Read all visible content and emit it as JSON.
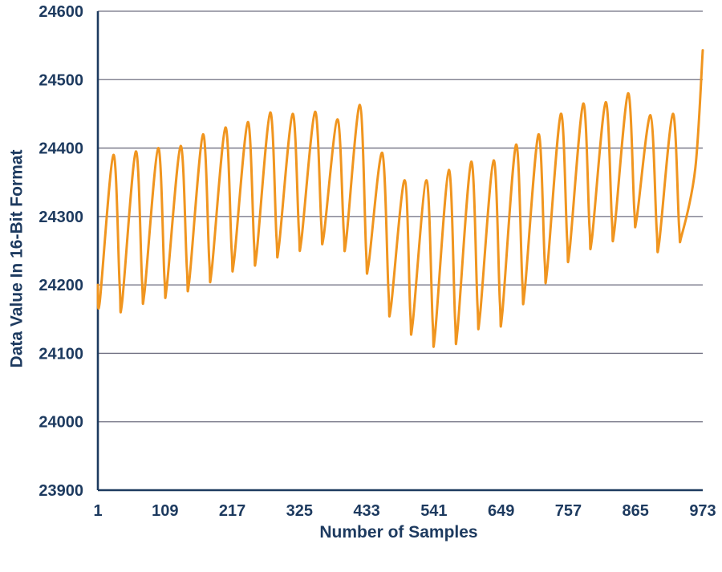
{
  "chart_data": {
    "type": "line",
    "title": "",
    "xlabel": "Number of Samples",
    "ylabel": "Data Value In 16-Bit Format",
    "xlim": [
      1,
      973
    ],
    "ylim": [
      23900,
      24600
    ],
    "x_ticks": [
      1,
      109,
      217,
      325,
      433,
      541,
      649,
      757,
      865,
      973
    ],
    "x_tick_labels": [
      "1",
      "109",
      "217",
      "325",
      "433",
      "541",
      "649",
      "757",
      "865",
      "973"
    ],
    "y_ticks": [
      23900,
      24000,
      24100,
      24200,
      24300,
      24400,
      24500,
      24600
    ],
    "y_tick_labels": [
      "23900",
      "24000",
      "24100",
      "24200",
      "24300",
      "24400",
      "24500",
      "24600"
    ],
    "grid": "horizontal",
    "colors": {
      "line": "#f0951f",
      "axis": "#1d3a5f",
      "grid": "#6f6f80"
    },
    "series": [
      {
        "x": [
          1,
          4,
          26,
          36,
          40,
          62,
          72,
          76,
          98,
          108,
          112,
          134,
          144,
          148,
          170,
          180,
          184,
          206,
          216,
          220,
          242,
          252,
          256,
          278,
          288,
          292,
          314,
          324,
          328,
          350,
          360,
          364,
          386,
          396,
          400,
          422,
          432,
          436,
          458,
          468,
          472,
          494,
          503,
          507,
          529,
          539,
          543,
          565,
          575,
          579,
          601,
          611,
          615,
          637,
          647,
          651,
          673,
          683,
          687,
          709,
          719,
          723,
          745,
          755,
          759,
          781,
          791,
          795,
          817,
          827,
          831,
          853,
          863,
          867,
          889,
          899,
          903,
          925,
          935,
          939,
          961,
          973
        ],
        "y": [
          24200,
          24175,
          24390,
          24200,
          24175,
          24395,
          24205,
          24190,
          24400,
          24210,
          24200,
          24403,
          24225,
          24207,
          24420,
          24235,
          24222,
          24430,
          24250,
          24237,
          24438,
          24260,
          24245,
          24452,
          24270,
          24257,
          24450,
          24280,
          24265,
          24453,
          24290,
          24272,
          24442,
          24280,
          24265,
          24463,
          24250,
          24230,
          24393,
          24190,
          24168,
          24353,
          24160,
          24145,
          24353,
          24145,
          24130,
          24368,
          24150,
          24135,
          24380,
          24170,
          24155,
          24382,
          24175,
          24160,
          24405,
          24205,
          24192,
          24420,
          24235,
          24222,
          24450,
          24268,
          24250,
          24465,
          24285,
          24268,
          24467,
          24295,
          24280,
          24480,
          24310,
          24298,
          24448,
          24280,
          24262,
          24450,
          24285,
          24272,
          24370,
          24543
        ]
      }
    ]
  }
}
